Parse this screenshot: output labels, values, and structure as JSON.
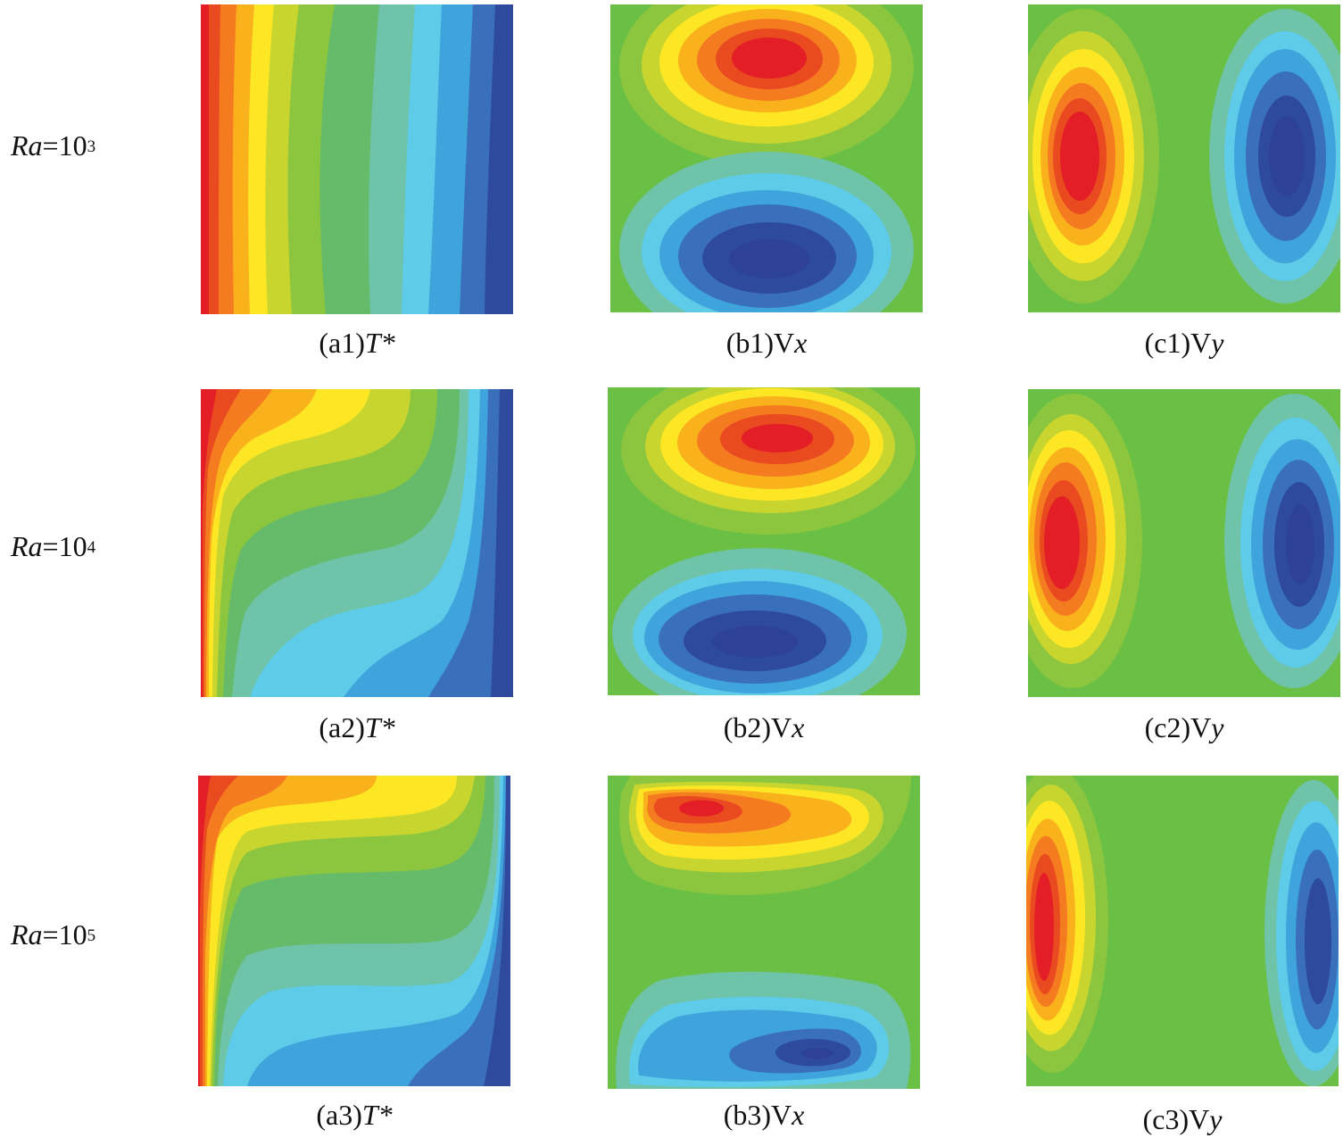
{
  "rows": [
    {
      "label_var": "Ra",
      "label_eq": "=10",
      "label_exp": "3"
    },
    {
      "label_var": "Ra",
      "label_eq": "=10",
      "label_exp": "4"
    },
    {
      "label_var": "Ra",
      "label_eq": "=10",
      "label_exp": "5"
    }
  ],
  "captions": {
    "a1": {
      "tag": "(a1)",
      "sym": "T*",
      "sym_italic": true
    },
    "b1": {
      "tag": "(b1)V",
      "sym": "x",
      "sym_italic": true
    },
    "c1": {
      "tag": "(c1)V",
      "sym": "y",
      "sym_italic": true
    },
    "a2": {
      "tag": "(a2)",
      "sym": "T*",
      "sym_italic": true
    },
    "b2": {
      "tag": "(b2)V",
      "sym": "x",
      "sym_italic": true
    },
    "c2": {
      "tag": "(c2)V",
      "sym": "y",
      "sym_italic": true
    },
    "a3": {
      "tag": "(a3)",
      "sym": "T*",
      "sym_italic": true
    },
    "b3": {
      "tag": "(b3)V",
      "sym": "x",
      "sym_italic": true
    },
    "c3": {
      "tag": "(c3)V",
      "sym": "y",
      "sym_italic": true
    }
  },
  "colormap": [
    "#2e4a9c",
    "#3a6fbb",
    "#3fa3dc",
    "#5ecbe8",
    "#6fc3a8",
    "#66bb6a",
    "#8cc63f",
    "#c8d52e",
    "#fde725",
    "#f9b21b",
    "#f47b20",
    "#ea4a1f",
    "#e41e26"
  ],
  "field_background": "#6abf45"
}
